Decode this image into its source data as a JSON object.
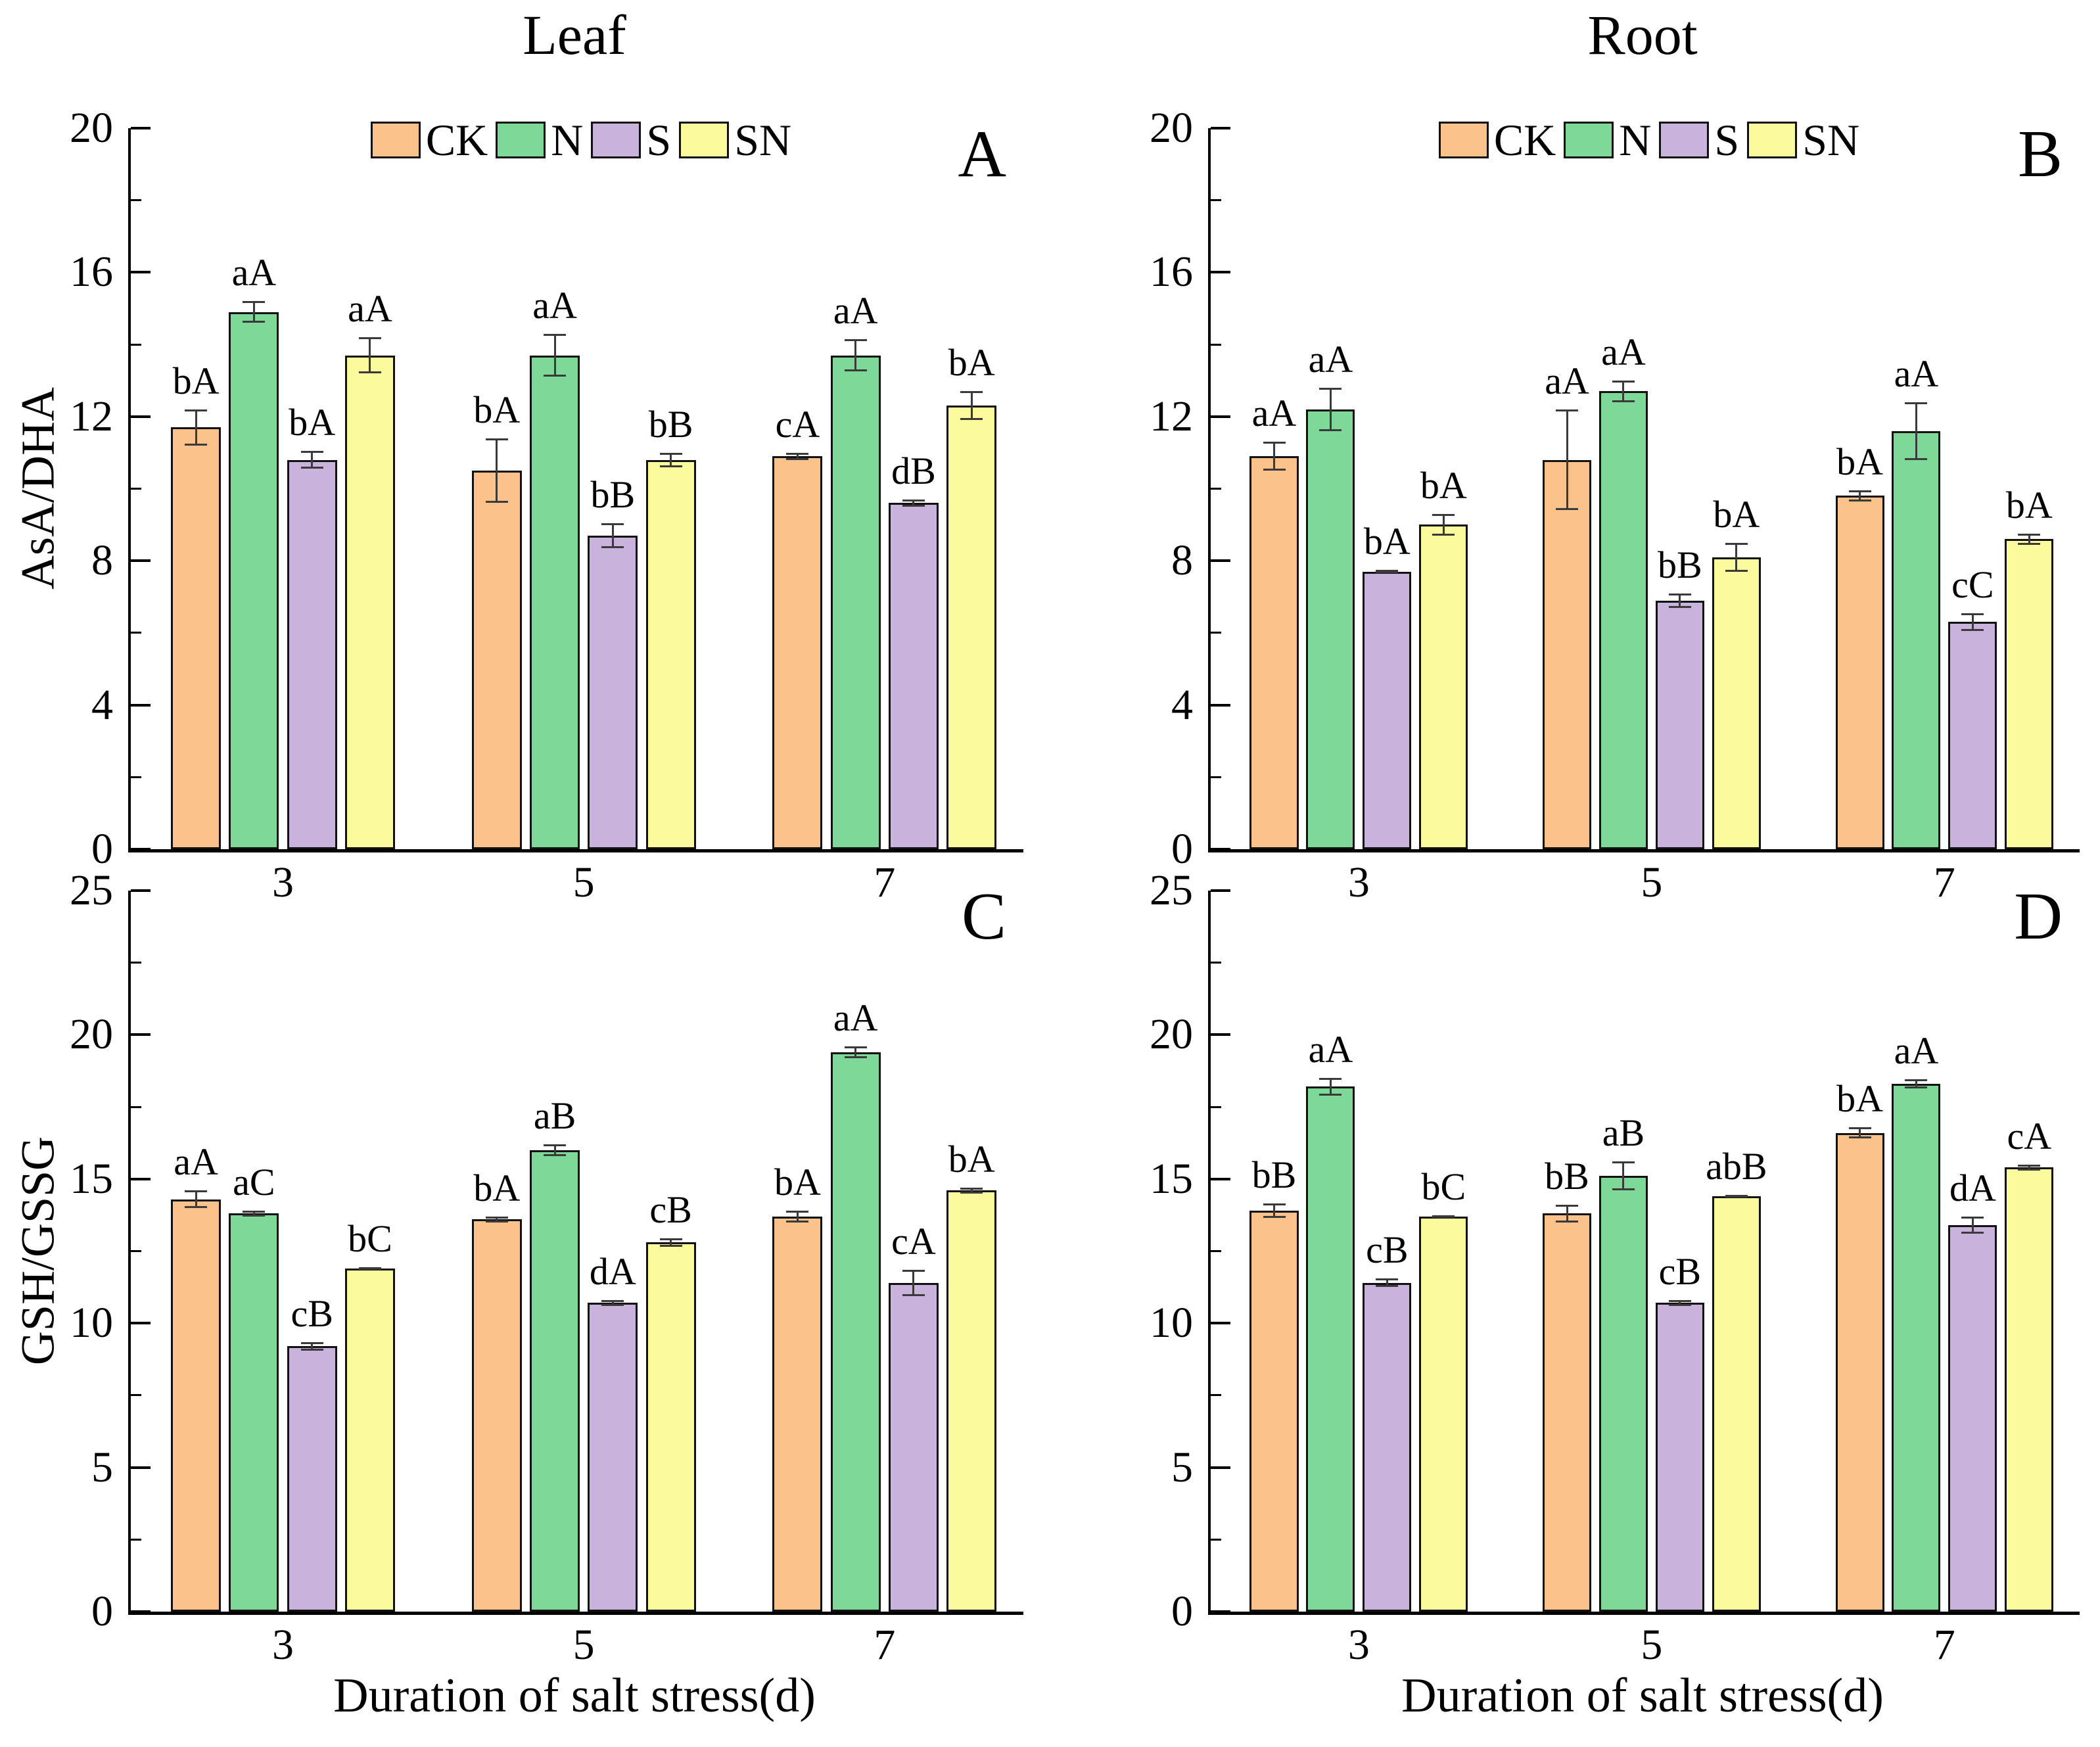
{
  "figure": {
    "columns": [
      {
        "title": "Leaf"
      },
      {
        "title": "Root"
      }
    ],
    "x_axis_title": "Duration of salt stress(d)",
    "legend": [
      {
        "label": "CK",
        "color": "#FBC28C"
      },
      {
        "label": "N",
        "color": "#7ED898"
      },
      {
        "label": "S",
        "color": "#C9B2DB"
      },
      {
        "label": "SN",
        "color": "#FBFA9D"
      }
    ],
    "colors": {
      "bar_border": "#111111",
      "error_bar": "#3a3a3a",
      "axis": "#000000"
    }
  },
  "chart_data": [
    {
      "type": "bar",
      "panel": "A",
      "organ": "Leaf",
      "ylabel": "AsA/DHA",
      "ylim": [
        0,
        20
      ],
      "yticks_major": [
        0,
        4,
        8,
        12,
        16,
        20
      ],
      "yticks_minor": [
        2,
        6,
        10,
        14,
        18
      ],
      "categories": [
        "3",
        "5",
        "7"
      ],
      "legend_position": "top-center",
      "grid": false,
      "series": [
        {
          "name": "CK",
          "values": [
            11.7,
            10.5,
            10.9
          ],
          "errors": [
            0.5,
            0.9,
            0.1
          ],
          "sig": [
            "bA",
            "bA",
            "cA"
          ]
        },
        {
          "name": "N",
          "values": [
            14.9,
            13.7,
            13.7
          ],
          "errors": [
            0.3,
            0.6,
            0.45
          ],
          "sig": [
            "aA",
            "aA",
            "aA"
          ]
        },
        {
          "name": "S",
          "values": [
            10.8,
            8.7,
            9.6
          ],
          "errors": [
            0.25,
            0.35,
            0.1
          ],
          "sig": [
            "bA",
            "bB",
            "dB"
          ]
        },
        {
          "name": "SN",
          "values": [
            13.7,
            10.8,
            12.3
          ],
          "errors": [
            0.5,
            0.2,
            0.4
          ],
          "sig": [
            "aA",
            "bB",
            "bA"
          ]
        }
      ]
    },
    {
      "type": "bar",
      "panel": "B",
      "organ": "Root",
      "ylabel": "AsA/DHA",
      "ylim": [
        0,
        20
      ],
      "yticks_major": [
        0,
        4,
        8,
        12,
        16,
        20
      ],
      "yticks_minor": [
        2,
        6,
        10,
        14,
        18
      ],
      "categories": [
        "3",
        "5",
        "7"
      ],
      "legend_position": "top-center",
      "grid": false,
      "series": [
        {
          "name": "CK",
          "values": [
            10.9,
            10.8,
            9.8
          ],
          "errors": [
            0.4,
            1.4,
            0.15
          ],
          "sig": [
            "aA",
            "aA",
            "bA"
          ]
        },
        {
          "name": "N",
          "values": [
            12.2,
            12.7,
            11.6
          ],
          "errors": [
            0.6,
            0.3,
            0.8
          ],
          "sig": [
            "aA",
            "aA",
            "aA"
          ]
        },
        {
          "name": "S",
          "values": [
            7.7,
            6.9,
            6.3
          ],
          "errors": [
            0.05,
            0.2,
            0.25
          ],
          "sig": [
            "bA",
            "bB",
            "cC"
          ]
        },
        {
          "name": "SN",
          "values": [
            9.0,
            8.1,
            8.6
          ],
          "errors": [
            0.3,
            0.4,
            0.15
          ],
          "sig": [
            "bA",
            "bA",
            "bA"
          ]
        }
      ]
    },
    {
      "type": "bar",
      "panel": "C",
      "organ": "Leaf",
      "ylabel": "GSH/GSSG",
      "ylim": [
        0,
        25
      ],
      "yticks_major": [
        0,
        5,
        10,
        15,
        20,
        25
      ],
      "yticks_minor": [
        2.5,
        7.5,
        12.5,
        17.5,
        22.5
      ],
      "categories": [
        "3",
        "5",
        "7"
      ],
      "legend_position": "none",
      "grid": false,
      "series": [
        {
          "name": "CK",
          "values": [
            14.3,
            13.6,
            13.7
          ],
          "errors": [
            0.3,
            0.1,
            0.2
          ],
          "sig": [
            "aA",
            "bA",
            "bA"
          ]
        },
        {
          "name": "N",
          "values": [
            13.8,
            16.0,
            19.4
          ],
          "errors": [
            0.1,
            0.2,
            0.2
          ],
          "sig": [
            "aC",
            "aB",
            "aA"
          ]
        },
        {
          "name": "S",
          "values": [
            9.2,
            10.7,
            11.4
          ],
          "errors": [
            0.15,
            0.1,
            0.45
          ],
          "sig": [
            "cB",
            "dA",
            "cA"
          ]
        },
        {
          "name": "SN",
          "values": [
            11.9,
            12.8,
            14.6
          ],
          "errors": [
            0.05,
            0.15,
            0.1
          ],
          "sig": [
            "bC",
            "cB",
            "bA"
          ]
        }
      ]
    },
    {
      "type": "bar",
      "panel": "D",
      "organ": "Root",
      "ylabel": "GSH/GSSG",
      "ylim": [
        0,
        25
      ],
      "yticks_major": [
        0,
        5,
        10,
        15,
        20,
        25
      ],
      "yticks_minor": [
        2.5,
        7.5,
        12.5,
        17.5,
        22.5
      ],
      "categories": [
        "3",
        "5",
        "7"
      ],
      "legend_position": "none",
      "grid": false,
      "series": [
        {
          "name": "CK",
          "values": [
            13.9,
            13.8,
            16.6
          ],
          "errors": [
            0.25,
            0.3,
            0.2
          ],
          "sig": [
            "bB",
            "bB",
            "bA"
          ]
        },
        {
          "name": "N",
          "values": [
            18.2,
            15.1,
            18.3
          ],
          "errors": [
            0.3,
            0.5,
            0.15
          ],
          "sig": [
            "aA",
            "aB",
            "aA"
          ]
        },
        {
          "name": "S",
          "values": [
            11.4,
            10.7,
            13.4
          ],
          "errors": [
            0.15,
            0.1,
            0.3
          ],
          "sig": [
            "cB",
            "cB",
            "dA"
          ]
        },
        {
          "name": "SN",
          "values": [
            13.7,
            14.4,
            15.4
          ],
          "errors": [
            0.05,
            0.05,
            0.1
          ],
          "sig": [
            "bC",
            "abB",
            "cA"
          ]
        }
      ]
    }
  ]
}
